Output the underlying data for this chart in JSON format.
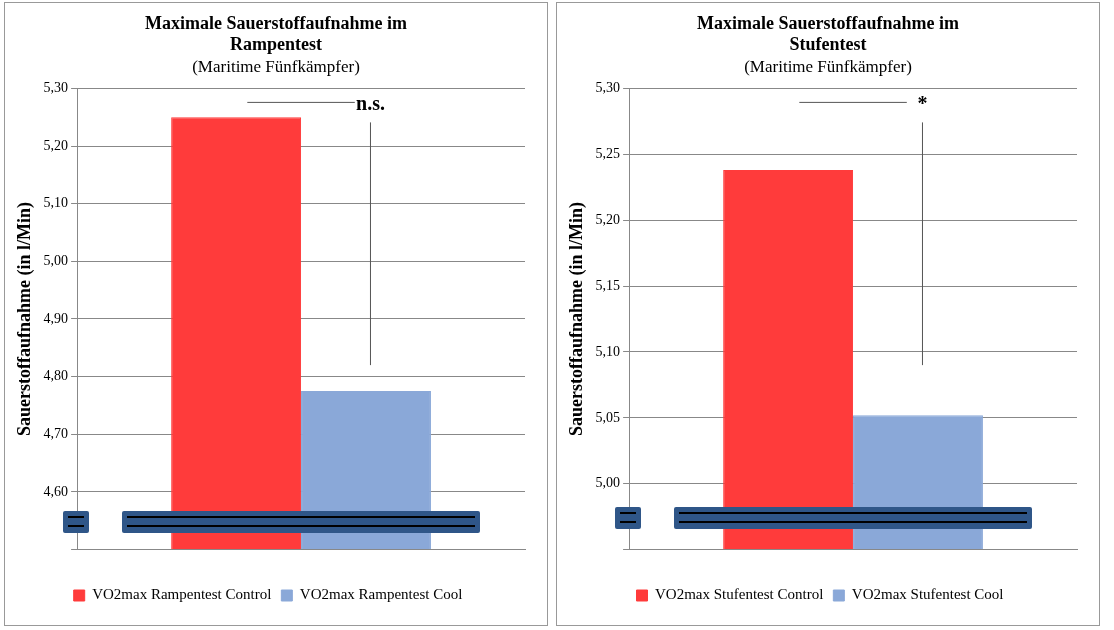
{
  "chart_data": [
    {
      "type": "bar",
      "title": "Maximale Sauerstoffaufnahme im Rampentest",
      "subtitle": "(Maritime Fünfkämpfer)",
      "ylabel": "Sauerstoffaufnahme (in l/Min)",
      "categories": [
        null
      ],
      "series": [
        {
          "name": "VO2max Rampentest Control",
          "color": "#ff3b3b",
          "values": [
            5.25
          ]
        },
        {
          "name": "VO2max Rampentest Cool",
          "color": "#8aa8d8",
          "values": [
            4.775
          ]
        }
      ],
      "ylim": [
        4.5,
        5.3
      ],
      "yticks": [
        {
          "value": 4.5,
          "label": null
        },
        {
          "value": 4.6,
          "label": "4,60"
        },
        {
          "value": 4.7,
          "label": "4,70"
        },
        {
          "value": 4.8,
          "label": "4,80"
        },
        {
          "value": 4.9,
          "label": "4,90"
        },
        {
          "value": 5.0,
          "label": "5,00"
        },
        {
          "value": 5.1,
          "label": "5,10"
        },
        {
          "value": 5.2,
          "label": "5,20"
        },
        {
          "value": 5.3,
          "label": "5,30"
        }
      ],
      "grid": "y",
      "legend": "bottom",
      "annotations": [
        "n.s."
      ]
    },
    {
      "type": "bar",
      "title": "Maximale Sauerstoffaufnahme im Stufentest",
      "subtitle": "(Maritime Fünfkämpfer)",
      "ylabel": "Sauerstoffaufnahme (in l/Min)",
      "categories": [
        null
      ],
      "series": [
        {
          "name": "VO2max Stufentest Control",
          "color": "#ff3b3b",
          "values": [
            5.238
          ]
        },
        {
          "name": "VO2max Stufentest Cool",
          "color": "#8aa8d8",
          "values": [
            5.052
          ]
        }
      ],
      "ylim": [
        4.95,
        5.3
      ],
      "yticks": [
        {
          "value": 4.95,
          "label": null
        },
        {
          "value": 5.0,
          "label": "5,00"
        },
        {
          "value": 5.05,
          "label": "5,05"
        },
        {
          "value": 5.1,
          "label": "5,10"
        },
        {
          "value": 5.15,
          "label": "5,15"
        },
        {
          "value": 5.2,
          "label": "5,20"
        },
        {
          "value": 5.25,
          "label": "5,25"
        },
        {
          "value": 5.3,
          "label": "5,30"
        }
      ],
      "grid": "y",
      "legend": "bottom",
      "annotations": [
        "*"
      ]
    }
  ]
}
